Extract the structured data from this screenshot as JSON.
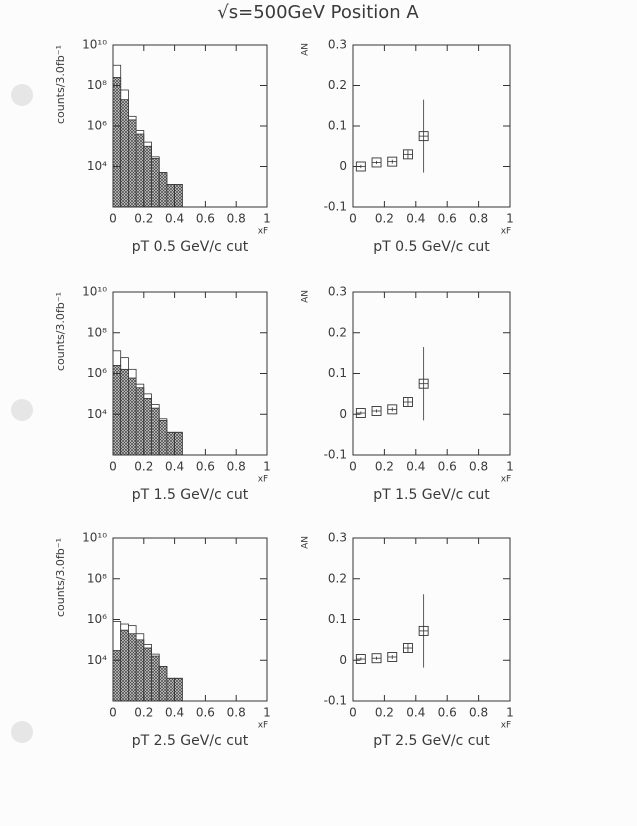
{
  "title": "√s=500GeV Position A",
  "chart_data": [
    {
      "type": "histogram",
      "caption": "pT 0.5 GeV/c cut",
      "x_label": "xF",
      "y_label": "counts/3.0fb⁻¹",
      "log_y": true,
      "xlim": [
        0,
        1
      ],
      "xticks": [
        0,
        0.2,
        0.4,
        0.6,
        0.8,
        1
      ],
      "ylim": [
        100,
        10000000000.0
      ],
      "yticks": [
        {
          "value": 10000.0,
          "label": "10⁴"
        },
        {
          "value": 1000000.0,
          "label": "10⁶"
        },
        {
          "value": 100000000.0,
          "label": "10⁸"
        },
        {
          "value": 10000000000.0,
          "label": "10¹⁰"
        }
      ],
      "bins": [
        0,
        0.05,
        0.1,
        0.15,
        0.2,
        0.25,
        0.3,
        0.35,
        0.4,
        0.45
      ],
      "series": [
        {
          "color": "#333333",
          "hatch": false,
          "values": [
            1000000000.0,
            60000000.0,
            3000000.0,
            600000.0,
            160000.0,
            30000.0,
            5000,
            1300,
            1300
          ]
        },
        {
          "color": "#333333",
          "hatch": true,
          "values": [
            250000000.0,
            20000000.0,
            2000000.0,
            400000.0,
            100000.0,
            25000.0,
            5000,
            1300,
            1300
          ]
        }
      ]
    },
    {
      "type": "scatter",
      "caption": "pT 0.5 GeV/c cut",
      "x_label": "xF",
      "y_label": "AN",
      "xlim": [
        0,
        1
      ],
      "xticks": [
        0,
        0.2,
        0.4,
        0.6,
        0.8,
        1
      ],
      "ylim": [
        -0.1,
        0.3
      ],
      "yticks": [
        -0.1,
        0,
        0.1,
        0.2,
        0.3
      ],
      "x": [
        0.05,
        0.15,
        0.25,
        0.35,
        0.45
      ],
      "values": [
        0,
        0.01,
        0.012,
        0.03,
        0.075
      ],
      "errors": [
        0.004,
        0.004,
        0.005,
        0.01,
        0.09
      ],
      "color": "#333333"
    },
    {
      "type": "histogram",
      "caption": "pT 1.5 GeV/c cut",
      "x_label": "xF",
      "y_label": "counts/3.0fb⁻¹",
      "log_y": true,
      "xlim": [
        0,
        1
      ],
      "xticks": [
        0,
        0.2,
        0.4,
        0.6,
        0.8,
        1
      ],
      "ylim": [
        100,
        10000000000.0
      ],
      "yticks": [
        {
          "value": 10000.0,
          "label": "10⁴"
        },
        {
          "value": 1000000.0,
          "label": "10⁶"
        },
        {
          "value": 100000000.0,
          "label": "10⁸"
        },
        {
          "value": 10000000000.0,
          "label": "10¹⁰"
        }
      ],
      "bins": [
        0,
        0.05,
        0.1,
        0.15,
        0.2,
        0.25,
        0.3,
        0.35,
        0.4,
        0.45
      ],
      "series": [
        {
          "color": "#333333",
          "hatch": false,
          "values": [
            13000000.0,
            6000000.0,
            1600000.0,
            300000.0,
            100000.0,
            30000.0,
            6000,
            1300,
            1300
          ]
        },
        {
          "color": "#333333",
          "hatch": true,
          "values": [
            2500000.0,
            1600000.0,
            600000.0,
            200000.0,
            60000.0,
            20000.0,
            5000,
            1300,
            1300
          ]
        }
      ]
    },
    {
      "type": "scatter",
      "caption": "pT 1.5 GeV/c cut",
      "x_label": "xF",
      "y_label": "AN",
      "xlim": [
        0,
        1
      ],
      "xticks": [
        0,
        0.2,
        0.4,
        0.6,
        0.8,
        1
      ],
      "ylim": [
        -0.1,
        0.3
      ],
      "yticks": [
        -0.1,
        0,
        0.1,
        0.2,
        0.3
      ],
      "x": [
        0.05,
        0.15,
        0.25,
        0.35,
        0.45
      ],
      "values": [
        0.003,
        0.008,
        0.012,
        0.03,
        0.075
      ],
      "errors": [
        0.004,
        0.004,
        0.005,
        0.01,
        0.09
      ],
      "color": "#333333"
    },
    {
      "type": "histogram",
      "caption": "pT 2.5 GeV/c cut",
      "x_label": "xF",
      "y_label": "counts/3.0fb⁻¹",
      "log_y": true,
      "xlim": [
        0,
        1
      ],
      "xticks": [
        0,
        0.2,
        0.4,
        0.6,
        0.8,
        1
      ],
      "ylim": [
        100,
        10000000000.0
      ],
      "yticks": [
        {
          "value": 10000.0,
          "label": "10⁴"
        },
        {
          "value": 1000000.0,
          "label": "10⁶"
        },
        {
          "value": 100000000.0,
          "label": "10⁸"
        },
        {
          "value": 10000000000.0,
          "label": "10¹⁰"
        }
      ],
      "bins": [
        0,
        0.05,
        0.1,
        0.15,
        0.2,
        0.25,
        0.3,
        0.35,
        0.4,
        0.45
      ],
      "series": [
        {
          "color": "#333333",
          "hatch": false,
          "values": [
            800000.0,
            600000.0,
            500000.0,
            200000.0,
            60000.0,
            20000.0,
            5000,
            1300,
            1300
          ]
        },
        {
          "color": "#333333",
          "hatch": true,
          "values": [
            30000.0,
            300000.0,
            200000.0,
            100000.0,
            40000.0,
            16000.0,
            5000,
            1300,
            1300
          ]
        }
      ]
    },
    {
      "type": "scatter",
      "caption": "pT 2.5 GeV/c cut",
      "x_label": "xF",
      "y_label": "AN",
      "xlim": [
        0,
        1
      ],
      "xticks": [
        0,
        0.2,
        0.4,
        0.6,
        0.8,
        1
      ],
      "ylim": [
        -0.1,
        0.3
      ],
      "yticks": [
        -0.1,
        0,
        0.1,
        0.2,
        0.3
      ],
      "x": [
        0.05,
        0.15,
        0.25,
        0.35,
        0.45
      ],
      "values": [
        0.003,
        0.005,
        0.008,
        0.03,
        0.072
      ],
      "errors": [
        0.004,
        0.004,
        0.005,
        0.01,
        0.09
      ],
      "color": "#333333"
    }
  ]
}
